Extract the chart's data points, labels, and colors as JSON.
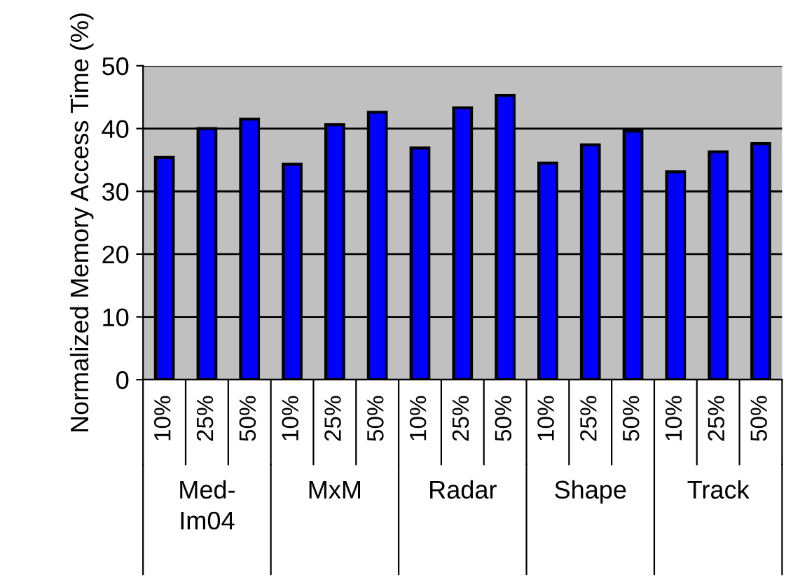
{
  "chart_data": {
    "type": "bar",
    "ylabel": "Normalized Memory Access Time (%)",
    "categories": [
      "10%",
      "25%",
      "50%",
      "10%",
      "25%",
      "50%",
      "10%",
      "25%",
      "50%",
      "10%",
      "25%",
      "50%",
      "10%",
      "25%",
      "50%"
    ],
    "values": [
      35.4,
      40.0,
      41.5,
      34.3,
      40.6,
      42.6,
      36.9,
      43.3,
      45.3,
      34.5,
      37.4,
      39.6,
      33.1,
      36.3,
      37.6
    ],
    "color": "#0000ff",
    "ylim": [
      0,
      50
    ],
    "yticks": [
      0,
      10,
      20,
      30,
      40,
      50
    ],
    "grid": "y",
    "annotations": [
      "Med-\nIm04",
      "MxM",
      "Radar",
      "Shape",
      "Track"
    ]
  }
}
